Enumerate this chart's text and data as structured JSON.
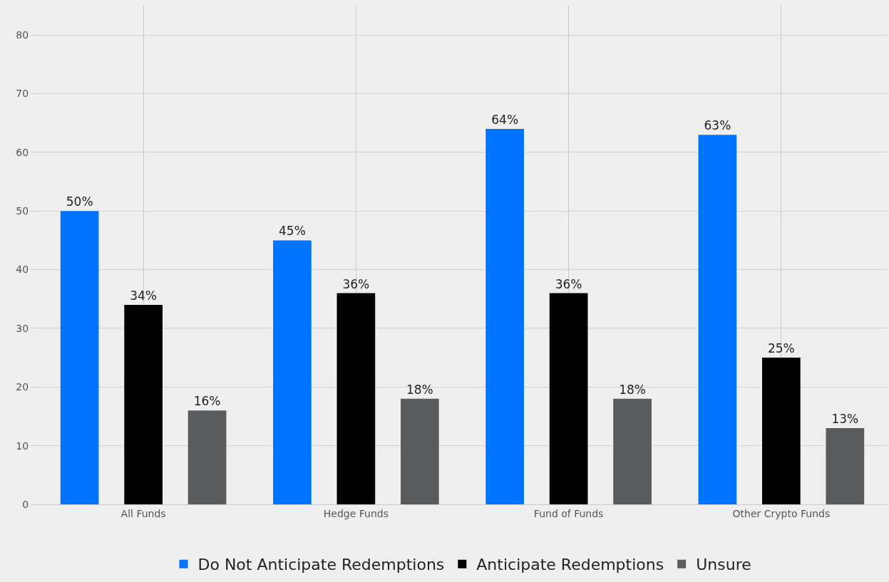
{
  "chart_data": {
    "type": "bar",
    "categories": [
      "All Funds",
      "Hedge Funds",
      "Fund of Funds",
      "Other Crypto Funds"
    ],
    "series": [
      {
        "name": "Do Not Anticipate Redemptions",
        "color": "#0073ff",
        "values": [
          50,
          45,
          64,
          63
        ],
        "value_labels": [
          "50%",
          "45%",
          "64%",
          "63%"
        ]
      },
      {
        "name": "Anticipate Redemptions",
        "color": "#000000",
        "values": [
          34,
          36,
          36,
          25
        ],
        "value_labels": [
          "34%",
          "36%",
          "36%",
          "25%"
        ]
      },
      {
        "name": "Unsure",
        "color": "#5a5b5c",
        "values": [
          16,
          18,
          18,
          13
        ],
        "value_labels": [
          "16%",
          "18%",
          "18%",
          "13%"
        ]
      }
    ],
    "ylim": [
      0,
      85
    ],
    "yticks": [
      0,
      10,
      20,
      30,
      40,
      50,
      60,
      70,
      80
    ],
    "grid": true,
    "legend": "bottom"
  }
}
